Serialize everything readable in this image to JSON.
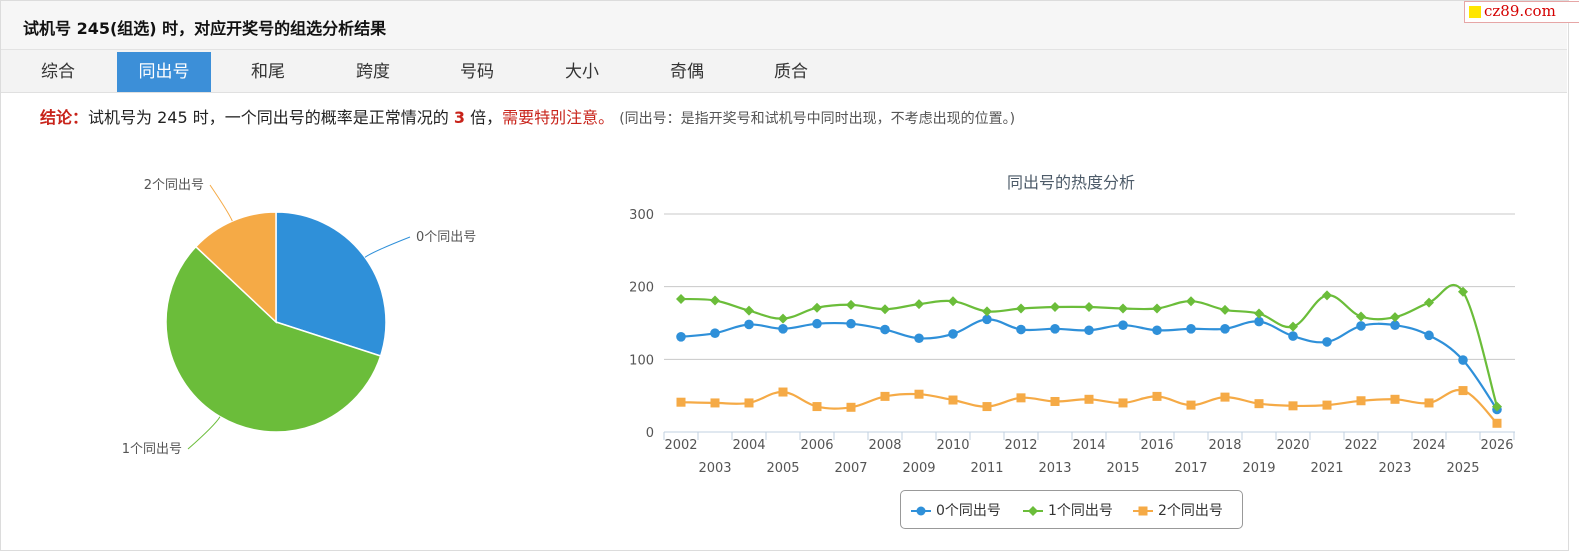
{
  "header": {
    "title": "试机号 245(组选) 时，对应开奖号的组选分析结果",
    "watermark": "cz89.com"
  },
  "tabs": [
    "综合",
    "同出号",
    "和尾",
    "跨度",
    "号码",
    "大小",
    "奇偶",
    "质合"
  ],
  "active_tab": "同出号",
  "conclusion": {
    "label": "结论：",
    "text_before": "试机号为 245 时，一个同出号的概率是正常情况的",
    "multiplier": "3",
    "text_unit": "倍，",
    "warning": "需要特别注意。",
    "note": "(同出号：是指开奖号和试机号中同时出现，不考虑出现的位置。)"
  },
  "chart_data": [
    {
      "type": "pie",
      "labels": [
        "0个同出号",
        "1个同出号",
        "2个同出号"
      ],
      "values": [
        30,
        57,
        13
      ],
      "colors": [
        "#2f90d9",
        "#6bbd3a",
        "#f5aa46"
      ]
    },
    {
      "type": "line",
      "title": "同出号的热度分析",
      "x": [
        "2002",
        "2003",
        "2004",
        "2005",
        "2006",
        "2007",
        "2008",
        "2009",
        "2010",
        "2011",
        "2012",
        "2013",
        "2014",
        "2015",
        "2016",
        "2017",
        "2018",
        "2019",
        "2020",
        "2021",
        "2022",
        "2023",
        "2024",
        "2025",
        "2026"
      ],
      "ylim": [
        0,
        300
      ],
      "yticks": [
        0,
        100,
        200,
        300
      ],
      "grid": true,
      "legend_position": "bottom",
      "series": [
        {
          "name": "0个同出号",
          "color": "#2f90d9",
          "marker": "circle",
          "values": [
            131,
            136,
            148,
            142,
            149,
            149,
            141,
            129,
            135,
            155,
            141,
            142,
            140,
            147,
            140,
            142,
            142,
            152,
            132,
            124,
            146,
            147,
            133,
            99,
            31
          ]
        },
        {
          "name": "1个同出号",
          "color": "#6bbd3a",
          "marker": "diamond",
          "values": [
            183,
            181,
            167,
            156,
            171,
            175,
            169,
            176,
            180,
            166,
            170,
            172,
            172,
            170,
            170,
            180,
            168,
            163,
            145,
            188,
            159,
            158,
            178,
            193,
            35
          ]
        },
        {
          "name": "2个同出号",
          "color": "#f5aa46",
          "marker": "square",
          "values": [
            41,
            40,
            40,
            55,
            35,
            34,
            49,
            52,
            44,
            35,
            47,
            42,
            45,
            40,
            49,
            37,
            48,
            39,
            36,
            37,
            43,
            45,
            40,
            57,
            12
          ]
        }
      ]
    }
  ]
}
